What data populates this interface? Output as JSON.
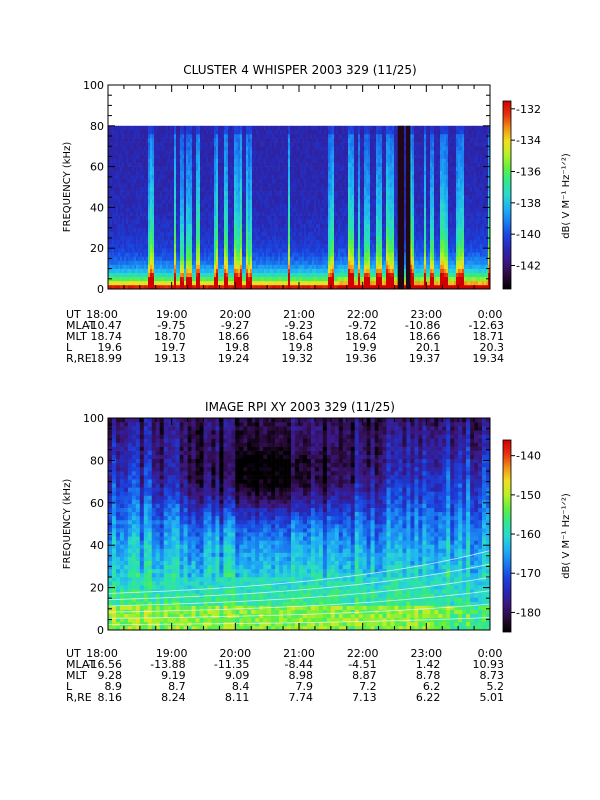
{
  "colormap": [
    "#000000",
    "#2a0a3a",
    "#3b1780",
    "#2828b4",
    "#1a44e0",
    "#1a7cf0",
    "#1fb0f5",
    "#28d8d0",
    "#30e890",
    "#60f040",
    "#b8f028",
    "#f0e020",
    "#f09018",
    "#e83010",
    "#d00000"
  ],
  "chart_data": [
    {
      "type": "heatmap",
      "title": "CLUSTER 4 WHISPER 2003 329 (11/25)",
      "ylabel": "FREQUENCY (kHz)",
      "xlabel": "UT",
      "ylim": [
        0,
        100
      ],
      "y_ticks": [
        "0",
        "20",
        "40",
        "60",
        "80",
        "100"
      ],
      "data_ceiling_khz": 80,
      "x_range_hours": [
        18,
        24
      ],
      "colorbar": {
        "label": "dB( V M⁻¹ Hz⁻¹ᐟ²)",
        "range": [
          -143.5,
          -131.5
        ],
        "ticks": [
          "-132",
          "-134",
          "-136",
          "-138",
          "-140",
          "-142"
        ]
      },
      "gaps_hours": [
        [
          22.55,
          22.65
        ],
        [
          22.68,
          22.75
        ]
      ],
      "ephemeris": [
        {
          "name": "UT",
          "values": [
            "18:00",
            "19:00",
            "20:00",
            "21:00",
            "22:00",
            "23:00",
            "0:00"
          ]
        },
        {
          "name": "MLAT",
          "values": [
            "-10.47",
            "-9.75",
            "-9.27",
            "-9.23",
            "-9.72",
            "-10.86",
            "-12.63"
          ]
        },
        {
          "name": "MLT",
          "values": [
            "18.74",
            "18.70",
            "18.66",
            "18.64",
            "18.64",
            "18.66",
            "18.71"
          ]
        },
        {
          "name": "L",
          "values": [
            "19.6",
            "19.7",
            "19.8",
            "19.8",
            "19.9",
            "20.1",
            "20.3"
          ]
        },
        {
          "name": "R,RE",
          "values": [
            "18.99",
            "19.13",
            "19.24",
            "19.32",
            "19.36",
            "19.37",
            "19.34"
          ]
        }
      ]
    },
    {
      "type": "heatmap",
      "title": "IMAGE RPI XY 2003 329 (11/25)",
      "ylabel": "FREQUENCY (kHz)",
      "xlabel": "UT",
      "ylim": [
        0,
        100
      ],
      "y_ticks": [
        "0",
        "20",
        "40",
        "60",
        "80",
        "100"
      ],
      "x_range_hours": [
        18,
        24
      ],
      "colorbar": {
        "label": "dB( V M⁻¹ Hz⁻¹ᐟ²)",
        "range": [
          -185,
          -136
        ],
        "ticks": [
          "-140",
          "-150",
          "-160",
          "-170",
          "-180"
        ]
      },
      "ephemeris": [
        {
          "name": "UT",
          "values": [
            "18:00",
            "19:00",
            "20:00",
            "21:00",
            "22:00",
            "23:00",
            "0:00"
          ]
        },
        {
          "name": "MLAT",
          "values": [
            "-16.56",
            "-13.88",
            "-11.35",
            "-8.44",
            "-4.51",
            "1.42",
            "10.93"
          ]
        },
        {
          "name": "MLT",
          "values": [
            "9.28",
            "9.19",
            "9.09",
            "8.98",
            "8.87",
            "8.78",
            "8.73"
          ]
        },
        {
          "name": "L",
          "values": [
            "8.9",
            "8.7",
            "8.4",
            "7.9",
            "7.2",
            "6.2",
            "5.2"
          ]
        },
        {
          "name": "R,RE",
          "values": [
            "8.16",
            "8.24",
            "8.11",
            "7.74",
            "7.13",
            "6.22",
            "5.01"
          ]
        }
      ]
    }
  ]
}
